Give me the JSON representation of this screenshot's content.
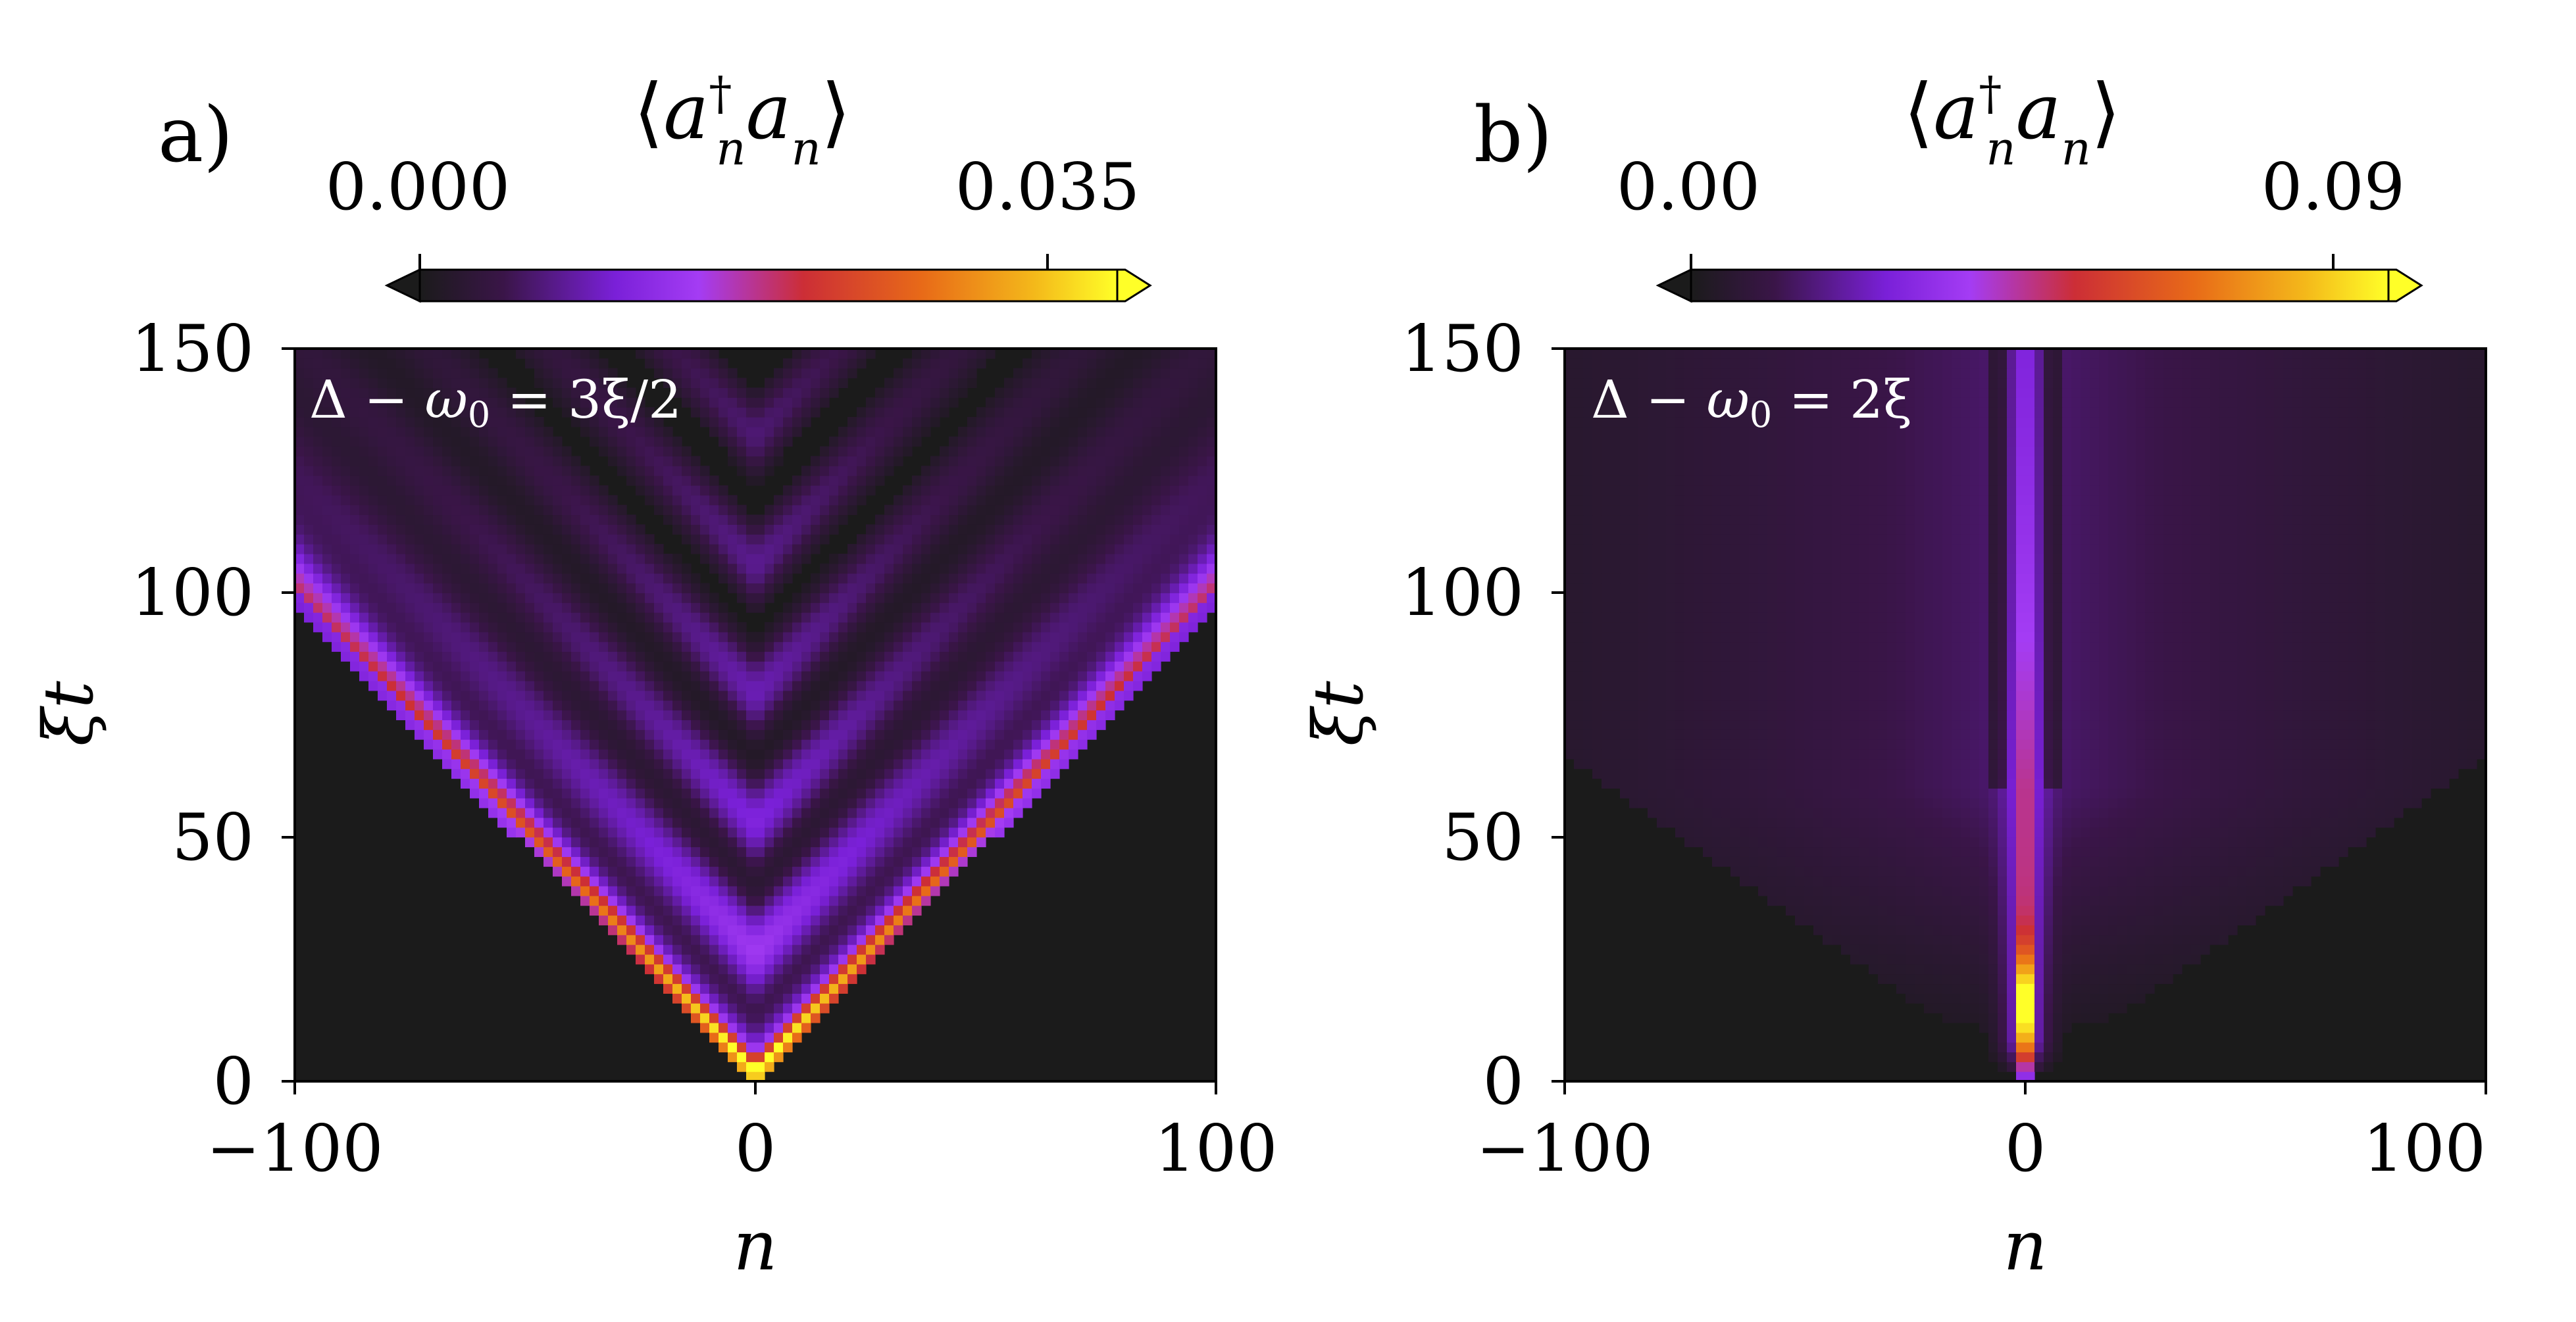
{
  "chart_data": [
    {
      "type": "heatmap",
      "panel_label": "a)",
      "colorbar": {
        "title": "⟨a†ₙaₙ⟩",
        "title_parts": [
          "⟨",
          "a",
          "†",
          "n",
          "a",
          "n",
          "⟩"
        ],
        "tick_labels": [
          "0.000",
          "0.035"
        ],
        "range": [
          0.0,
          0.035
        ],
        "extend": "both",
        "colormap": "gnuplot-like: black → violet → red → orange → yellow"
      },
      "annotation": "Δ − ω₀ = 3ξ/2",
      "annotation_parts": [
        "Δ − ",
        "ω",
        "0",
        " = 3ξ/2"
      ],
      "xlabel": "n",
      "ylabel": "ξt",
      "x_ticks": [
        "−100",
        "0",
        "100"
      ],
      "y_ticks": [
        "0",
        "50",
        "100",
        "150"
      ],
      "xlim": [
        -100,
        100
      ],
      "ylim": [
        0,
        150
      ],
      "pattern": {
        "description": "light cone from n=0,t=0; bright main front at |n| ≈ 1.0·ξt, many faint inner fringes",
        "main_front_slope": 1.0,
        "peak_value_near_origin": 0.035
      }
    },
    {
      "type": "heatmap",
      "panel_label": "b)",
      "colorbar": {
        "title": "⟨a†ₙaₙ⟩",
        "title_parts": [
          "⟨",
          "a",
          "†",
          "n",
          "a",
          "n",
          "⟩"
        ],
        "tick_labels": [
          "0.00",
          "0.09"
        ],
        "range": [
          0.0,
          0.09
        ],
        "extend": "both",
        "colormap": "gnuplot-like: black → violet → red → orange → yellow"
      },
      "annotation": "Δ − ω₀ = 2ξ",
      "annotation_parts": [
        "Δ − ",
        "ω",
        "0",
        " = 2ξ"
      ],
      "xlabel": "n",
      "ylabel": "ξt",
      "x_ticks": [
        "−100",
        "0",
        "100"
      ],
      "y_ticks": [
        "0",
        "50",
        "100",
        "150"
      ],
      "xlim": [
        -100,
        100
      ],
      "ylim": [
        0,
        150
      ],
      "pattern": {
        "description": "bound state localized at n=0 (bright stripe, brightest near ξt≈15), plus diffuse faint emission spreading outward",
        "peak_value_near_origin": 0.09
      }
    }
  ],
  "colors": {
    "background": "#ffffff",
    "plot_floor": "#1b1b1b",
    "text": "#000000",
    "annotation_text": "#ffffff"
  }
}
